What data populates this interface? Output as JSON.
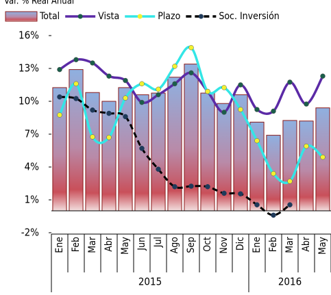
{
  "chart_data": {
    "type": "bar-line",
    "title": "Var. % Real Anual",
    "categories": [
      "Ene",
      "Feb",
      "Mar",
      "Abr",
      "May",
      "Jun",
      "Jul",
      "Ago",
      "Sep",
      "Oct",
      "Nov",
      "Dic",
      "Ene",
      "Feb",
      "Mar",
      "Abr",
      "May"
    ],
    "year_groups": [
      {
        "label": "2015",
        "size": 12
      },
      {
        "label": "2016",
        "size": 5
      }
    ],
    "series": [
      {
        "name": "Total",
        "type": "bar",
        "color": "#8b1a1a",
        "values": [
          11.25,
          12.9,
          10.8,
          10.0,
          11.25,
          10.6,
          10.75,
          12.2,
          13.4,
          10.75,
          9.8,
          10.6,
          8.1,
          6.9,
          8.25,
          8.2,
          9.4
        ]
      },
      {
        "name": "Vista",
        "type": "line",
        "color": "#5b2aa6",
        "marker_color": "#1b5e4a",
        "values": [
          12.9,
          13.8,
          13.5,
          12.3,
          11.9,
          9.9,
          10.6,
          11.6,
          12.6,
          10.9,
          9.0,
          11.5,
          9.25,
          9.1,
          11.75,
          9.75,
          12.3
        ]
      },
      {
        "name": "Plazo",
        "type": "line",
        "color": "#33e6e6",
        "marker_color": "#f2f230",
        "values": [
          8.75,
          11.6,
          6.75,
          6.7,
          10.3,
          11.6,
          11.1,
          13.2,
          14.9,
          10.9,
          11.25,
          9.25,
          6.4,
          3.4,
          2.7,
          5.9,
          4.9
        ]
      },
      {
        "name": "Soc. Inversión",
        "type": "line",
        "dashed": true,
        "color": "#000000",
        "marker_color": "#1f3a5a",
        "values": [
          10.4,
          10.25,
          9.2,
          8.9,
          8.6,
          5.7,
          3.8,
          2.2,
          2.25,
          2.2,
          1.6,
          1.55,
          0.55,
          -0.4,
          0.55,
          null,
          null
        ]
      }
    ],
    "ylim": [
      -2,
      16
    ],
    "yticks": [
      {
        "value": -2,
        "label": "-2%"
      },
      {
        "value": 1,
        "label": "1%"
      },
      {
        "value": 4,
        "label": "4%"
      },
      {
        "value": 7,
        "label": "7%"
      },
      {
        "value": 10,
        "label": "10%"
      },
      {
        "value": 13,
        "label": "13%"
      },
      {
        "value": 16,
        "label": "16%"
      }
    ],
    "grid": false
  }
}
